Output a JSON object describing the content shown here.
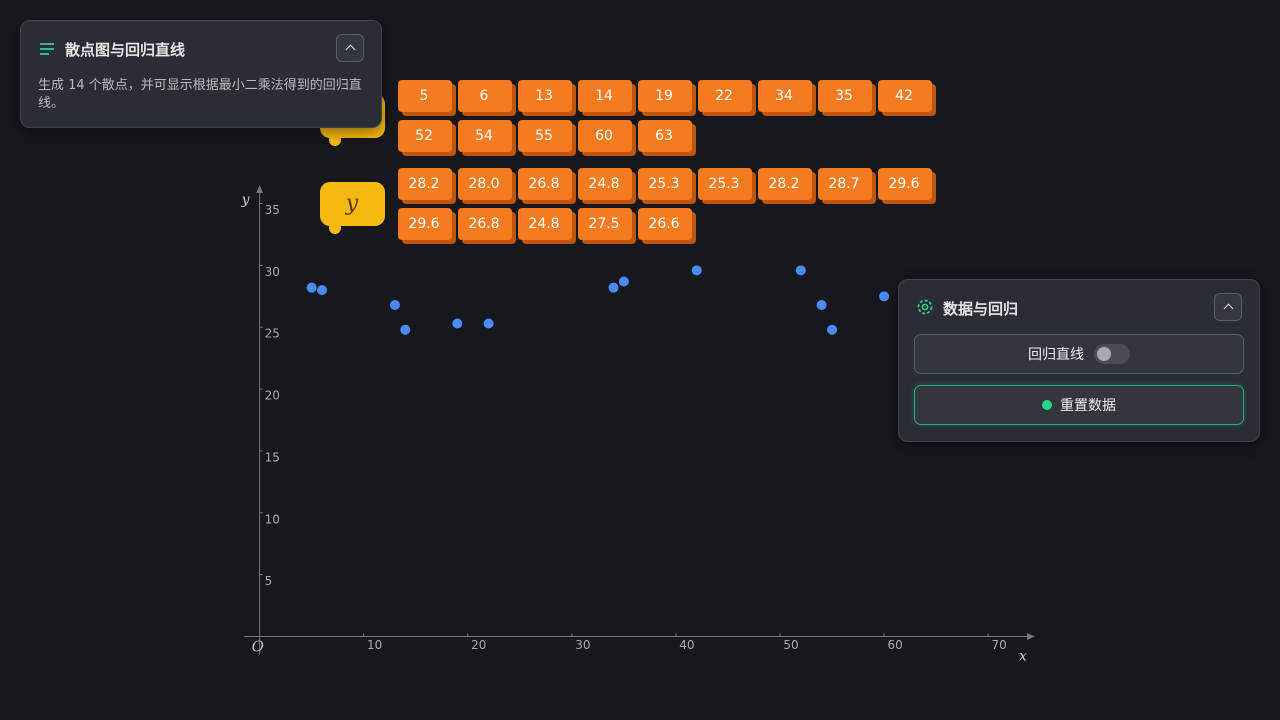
{
  "chart_data": {
    "type": "scatter",
    "x": [
      5,
      6,
      13,
      14,
      19,
      22,
      34,
      35,
      42,
      52,
      54,
      55,
      60,
      63
    ],
    "y": [
      28.2,
      28.0,
      26.8,
      24.8,
      25.3,
      25.3,
      28.2,
      28.7,
      29.6,
      29.6,
      26.8,
      24.8,
      27.5,
      26.6
    ],
    "y_value_labels": [
      "28.2",
      "28.0",
      "26.8",
      "24.8",
      "25.3",
      "25.3",
      "28.2",
      "28.7",
      "29.6",
      "29.6",
      "26.8",
      "24.8",
      "27.5",
      "26.6"
    ],
    "color": "#4a8af4",
    "xlim": [
      -1.5,
      74.5
    ],
    "ylim": [
      -1.5,
      36.5
    ],
    "xticks": [
      10,
      20,
      30,
      40,
      50,
      60,
      70
    ],
    "yticks": [
      5,
      10,
      15,
      20,
      25,
      30,
      35
    ],
    "x_label": "x",
    "y_label": "y",
    "origin_label": "O",
    "y_badge": "y"
  },
  "info_panel": {
    "title": "散点图与回归直线",
    "description": "生成 14 个散点，并可显示根据最小二乘法得到的回归直线。"
  },
  "control_panel": {
    "title": "数据与回归",
    "toggle_label": "回归直线",
    "button_label": "重置数据"
  }
}
